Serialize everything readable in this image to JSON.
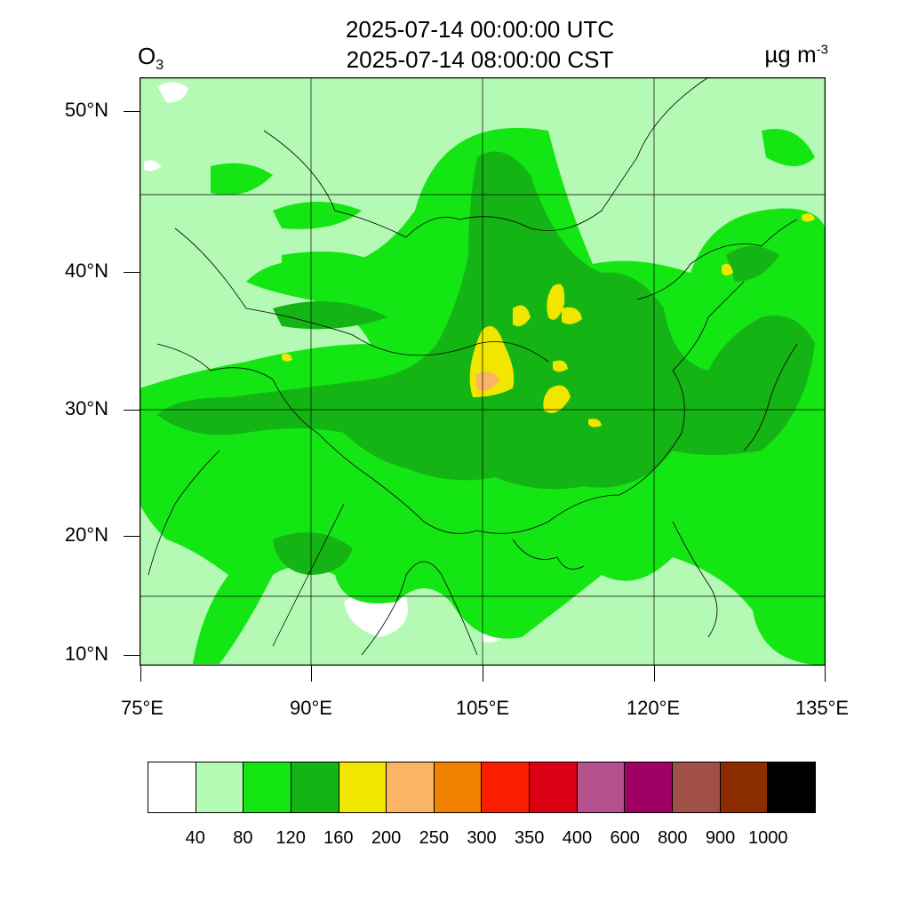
{
  "header": {
    "variable": "O",
    "variable_sub": "3",
    "time_utc": "2025-07-14 00:00:00 UTC",
    "time_cst": "2025-07-14 08:00:00 CST",
    "units": "µg m",
    "units_sup": "-3"
  },
  "map": {
    "lat_ticks": [
      "50°N",
      "40°N",
      "30°N",
      "20°N",
      "10°N"
    ],
    "lon_ticks": [
      "75°E",
      "90°E",
      "105°E",
      "120°E",
      "135°E"
    ],
    "lon_range": [
      75,
      135
    ],
    "lat_range": [
      9,
      52
    ]
  },
  "colorbar": {
    "colors": [
      "#ffffff",
      "#b4fab4",
      "#14e614",
      "#14b414",
      "#f0e600",
      "#fab464",
      "#f08200",
      "#fa1e00",
      "#dc0014",
      "#b4508c",
      "#a00064",
      "#a05046",
      "#8c2d00",
      "#000000"
    ],
    "labels": [
      "40",
      "80",
      "120",
      "160",
      "200",
      "250",
      "300",
      "350",
      "400",
      "600",
      "800",
      "900",
      "1000"
    ]
  }
}
